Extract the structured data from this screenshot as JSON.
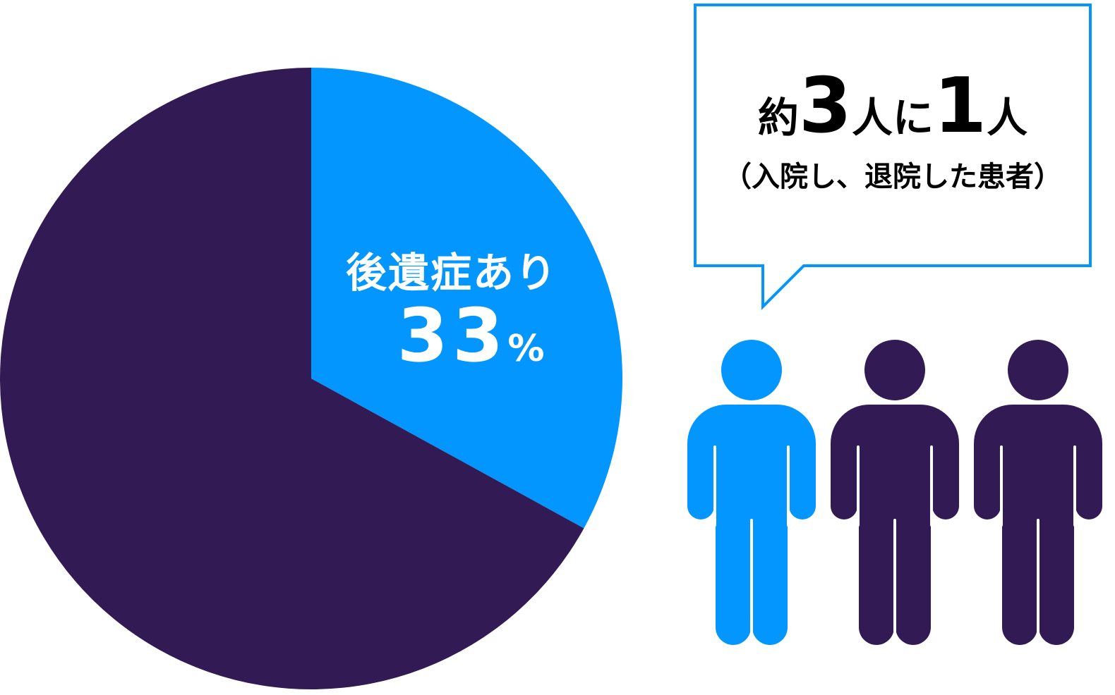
{
  "chart_data": {
    "type": "pie",
    "slices": [
      {
        "label": "後遺症あり",
        "value": 33,
        "color": "#0496FF"
      },
      {
        "label": "",
        "value": 67,
        "color": "#321A54"
      }
    ],
    "start": "12 o'clock",
    "direction": "clockwise"
  },
  "slice_label": "後遺症あり",
  "slice_value": "33",
  "slice_unit": "%",
  "callout": {
    "prefix": "約",
    "num1": "3",
    "mid": "人に",
    "num2": "1",
    "suffix": "人",
    "sub": "（入院し、退院した患者）",
    "border_color": "#0496FF"
  },
  "people": [
    {
      "color": "#0496FF",
      "highlighted": true
    },
    {
      "color": "#321A54",
      "highlighted": false
    },
    {
      "color": "#321A54",
      "highlighted": false
    }
  ]
}
